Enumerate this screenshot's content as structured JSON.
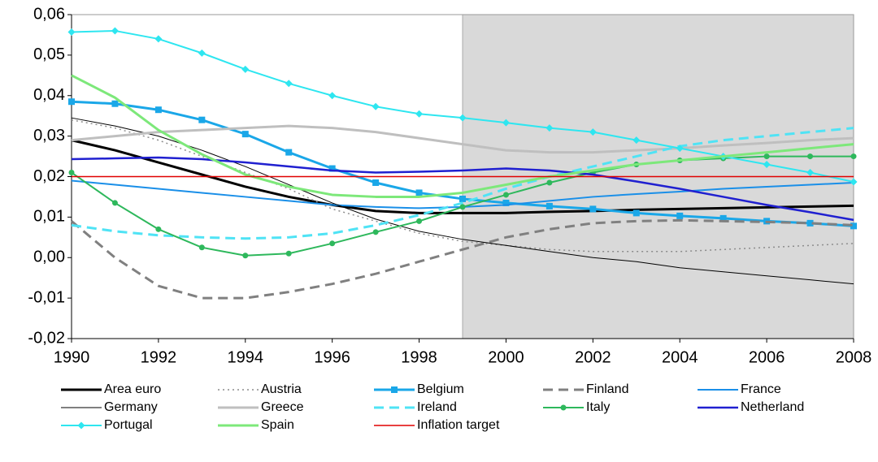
{
  "chart_data": {
    "type": "line",
    "x": [
      1990,
      1991,
      1992,
      1993,
      1994,
      1995,
      1996,
      1997,
      1998,
      1999,
      2000,
      2001,
      2002,
      2003,
      2004,
      2005,
      2006,
      2007,
      2008
    ],
    "xlim": [
      1990,
      2008
    ],
    "xticks": [
      1990,
      1992,
      1994,
      1996,
      1998,
      2000,
      2002,
      2004,
      2006,
      2008
    ],
    "ylim": [
      -0.02,
      0.06
    ],
    "yticks": [
      {
        "value": -0.02,
        "label": "-0,02"
      },
      {
        "value": -0.01,
        "label": "-0,01"
      },
      {
        "value": 0,
        "label": "0,00"
      },
      {
        "value": 0.01,
        "label": "0,01"
      },
      {
        "value": 0.02,
        "label": "0,02"
      },
      {
        "value": 0.03,
        "label": "0,03"
      },
      {
        "value": 0.04,
        "label": "0,04"
      },
      {
        "value": 0.05,
        "label": "0,05"
      },
      {
        "value": 0.06,
        "label": "0,06"
      }
    ],
    "shaded_range": [
      1999,
      2008
    ],
    "shade_color": "#d9d9d9",
    "series": [
      {
        "name": "Area euro",
        "color": "#000000",
        "width": 3,
        "dash": "solid",
        "marker": "none",
        "values": [
          0.029,
          0.0265,
          0.0235,
          0.0205,
          0.0175,
          0.015,
          0.013,
          0.0115,
          0.011,
          0.011,
          0.011,
          0.0113,
          0.0115,
          0.0118,
          0.012,
          0.0122,
          0.0124,
          0.0126,
          0.0128
        ]
      },
      {
        "name": "Austria",
        "color": "#8c8c8c",
        "width": 1.5,
        "dash": "dotted",
        "marker": "none",
        "values": [
          0.034,
          0.032,
          0.029,
          0.025,
          0.021,
          0.017,
          0.012,
          0.009,
          0.006,
          0.004,
          0.003,
          0.002,
          0.0015,
          0.0015,
          0.0015,
          0.002,
          0.0025,
          0.003,
          0.0035
        ]
      },
      {
        "name": "Belgium",
        "color": "#1aa7e8",
        "width": 3,
        "dash": "solid",
        "marker": "square",
        "values": [
          0.0385,
          0.038,
          0.0365,
          0.034,
          0.0305,
          0.026,
          0.022,
          0.0185,
          0.016,
          0.0145,
          0.0135,
          0.0127,
          0.012,
          0.011,
          0.0103,
          0.0097,
          0.009,
          0.0085,
          0.0078
        ]
      },
      {
        "name": "Finland",
        "color": "#808080",
        "width": 3,
        "dash": "dashed",
        "marker": "none",
        "values": [
          0.009,
          0.0,
          -0.007,
          -0.01,
          -0.01,
          -0.0085,
          -0.0065,
          -0.004,
          -0.001,
          0.002,
          0.005,
          0.007,
          0.0085,
          0.009,
          0.0092,
          0.009,
          0.0088,
          0.0085,
          0.008
        ]
      },
      {
        "name": "France",
        "color": "#1a8fe8",
        "width": 2,
        "dash": "solid",
        "marker": "none",
        "values": [
          0.019,
          0.018,
          0.017,
          0.016,
          0.015,
          0.014,
          0.013,
          0.0125,
          0.0122,
          0.0125,
          0.013,
          0.014,
          0.015,
          0.0157,
          0.0163,
          0.017,
          0.0175,
          0.018,
          0.0185
        ]
      },
      {
        "name": "Germany",
        "color": "#000000",
        "width": 1,
        "dash": "solid",
        "marker": "none",
        "values": [
          0.0345,
          0.0325,
          0.03,
          0.0265,
          0.0225,
          0.018,
          0.0135,
          0.0095,
          0.0065,
          0.0045,
          0.003,
          0.0015,
          0.0,
          -0.001,
          -0.0025,
          -0.0035,
          -0.0045,
          -0.0055,
          -0.0065
        ]
      },
      {
        "name": "Greece",
        "color": "#bfbfbf",
        "width": 3,
        "dash": "solid",
        "marker": "none",
        "values": [
          0.029,
          0.03,
          0.031,
          0.0315,
          0.032,
          0.0325,
          0.032,
          0.031,
          0.0295,
          0.028,
          0.0265,
          0.026,
          0.026,
          0.0265,
          0.027,
          0.0277,
          0.0283,
          0.029,
          0.0295
        ]
      },
      {
        "name": "Ireland",
        "color": "#4fe3f5",
        "width": 3,
        "dash": "dashed",
        "marker": "none",
        "values": [
          0.008,
          0.0065,
          0.0055,
          0.005,
          0.0047,
          0.005,
          0.006,
          0.008,
          0.0105,
          0.0135,
          0.017,
          0.02,
          0.0225,
          0.025,
          0.0275,
          0.029,
          0.03,
          0.031,
          0.032
        ]
      },
      {
        "name": "Italy",
        "color": "#2eb85c",
        "width": 2,
        "dash": "solid",
        "marker": "circle",
        "values": [
          0.021,
          0.0135,
          0.007,
          0.0025,
          0.0005,
          0.001,
          0.0035,
          0.0063,
          0.009,
          0.0125,
          0.0155,
          0.0185,
          0.021,
          0.023,
          0.024,
          0.0245,
          0.025,
          0.025,
          0.025
        ]
      },
      {
        "name": "Netherland",
        "color": "#2020d0",
        "width": 2.5,
        "dash": "solid",
        "marker": "none",
        "values": [
          0.0243,
          0.0245,
          0.0247,
          0.0243,
          0.0235,
          0.0225,
          0.0215,
          0.021,
          0.0212,
          0.0215,
          0.022,
          0.0215,
          0.0205,
          0.0188,
          0.017,
          0.015,
          0.013,
          0.0112,
          0.0093
        ]
      },
      {
        "name": "Portugal",
        "color": "#2ee6f0",
        "width": 2,
        "dash": "solid",
        "marker": "diamond",
        "values": [
          0.0557,
          0.056,
          0.054,
          0.0505,
          0.0465,
          0.043,
          0.04,
          0.0373,
          0.0355,
          0.0345,
          0.0333,
          0.032,
          0.031,
          0.029,
          0.027,
          0.025,
          0.023,
          0.021,
          0.0187
        ]
      },
      {
        "name": "Spain",
        "color": "#7de87a",
        "width": 3,
        "dash": "solid",
        "marker": "none",
        "values": [
          0.045,
          0.0395,
          0.0315,
          0.0255,
          0.0205,
          0.0175,
          0.0155,
          0.015,
          0.015,
          0.016,
          0.018,
          0.02,
          0.0215,
          0.023,
          0.024,
          0.025,
          0.026,
          0.027,
          0.028
        ]
      },
      {
        "name": "Inflation target",
        "color": "#e00000",
        "width": 1.5,
        "dash": "solid",
        "marker": "none",
        "values": [
          0.02,
          0.02,
          0.02,
          0.02,
          0.02,
          0.02,
          0.02,
          0.02,
          0.02,
          0.02,
          0.02,
          0.02,
          0.02,
          0.02,
          0.02,
          0.02,
          0.02,
          0.02,
          0.02
        ]
      }
    ]
  }
}
